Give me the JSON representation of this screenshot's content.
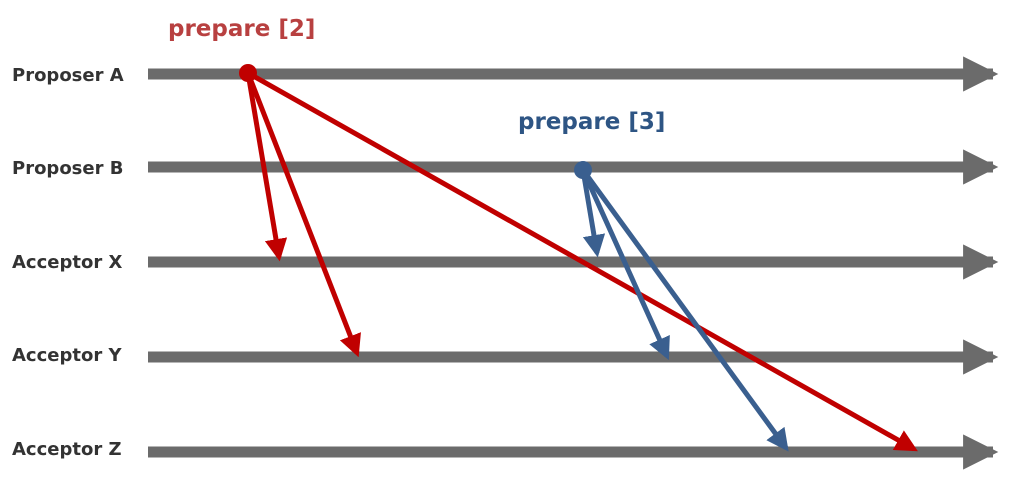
{
  "colors": {
    "timeline": "#6b6b6b",
    "proposer_a": "#c00000",
    "proposer_b": "#3a5f8f",
    "text": "#333333",
    "label_a": "#b84040",
    "label_b": "#2e5584"
  },
  "lanes": [
    {
      "id": "proposer-a",
      "label": "Proposer A"
    },
    {
      "id": "proposer-b",
      "label": "Proposer B"
    },
    {
      "id": "acceptor-x",
      "label": "Acceptor X"
    },
    {
      "id": "acceptor-y",
      "label": "Acceptor Y"
    },
    {
      "id": "acceptor-z",
      "label": "Acceptor Z"
    }
  ],
  "messages": [
    {
      "from": "proposer-a",
      "label": "prepare [2]",
      "to": [
        "acceptor-x",
        "acceptor-y",
        "acceptor-z"
      ]
    },
    {
      "from": "proposer-b",
      "label": "prepare [3]",
      "to": [
        "acceptor-x",
        "acceptor-y",
        "acceptor-z"
      ]
    }
  ]
}
